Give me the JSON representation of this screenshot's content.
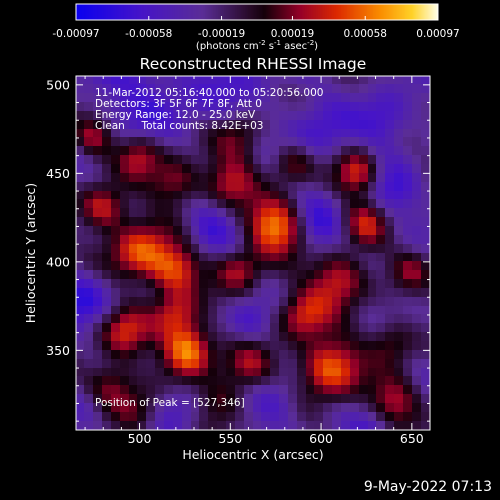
{
  "chart_data": {
    "type": "heatmap",
    "title": "Reconstructed RHESSI Image",
    "xlabel": "Heliocentric X (arcsec)",
    "ylabel": "Heliocentric Y (arcsec)",
    "xlim": [
      465,
      660
    ],
    "ylim": [
      305,
      505
    ],
    "x_ticks": [
      500,
      550,
      600,
      650
    ],
    "y_ticks": [
      350,
      400,
      450,
      500
    ],
    "colorbar": {
      "label": "(photons cm",
      "label_exp1": "-2",
      "label_mid": " s",
      "label_exp2": "-1",
      "label_mid2": " asec",
      "label_exp3": "-2",
      "label_end": ")",
      "range": [
        -0.00097,
        0.00097
      ],
      "ticks": [
        "-0.00097",
        "-0.00058",
        "-0.00019",
        "0.00019",
        "0.00058",
        "0.00097"
      ],
      "tick_values": [
        -0.00097,
        -0.00058,
        -0.00019,
        0.00019,
        0.00058,
        0.00097
      ]
    },
    "peak": [
      527,
      346
    ],
    "blobs": [
      {
        "x": 527,
        "y": 350,
        "v": 1.0,
        "s": 10
      },
      {
        "x": 575,
        "y": 420,
        "v": 0.95,
        "s": 11
      },
      {
        "x": 605,
        "y": 340,
        "v": 0.9,
        "s": 12
      },
      {
        "x": 485,
        "y": 330,
        "v": 0.55,
        "s": 10
      },
      {
        "x": 492,
        "y": 360,
        "v": 0.6,
        "s": 10
      },
      {
        "x": 480,
        "y": 430,
        "v": 0.7,
        "s": 9
      },
      {
        "x": 500,
        "y": 405,
        "v": 0.8,
        "s": 12
      },
      {
        "x": 520,
        "y": 395,
        "v": 0.7,
        "s": 10
      },
      {
        "x": 555,
        "y": 395,
        "v": 0.55,
        "s": 9
      },
      {
        "x": 550,
        "y": 445,
        "v": 0.55,
        "s": 10
      },
      {
        "x": 520,
        "y": 445,
        "v": 0.6,
        "s": 10
      },
      {
        "x": 500,
        "y": 460,
        "v": 0.6,
        "s": 9
      },
      {
        "x": 555,
        "y": 470,
        "v": 0.5,
        "s": 10
      },
      {
        "x": 620,
        "y": 450,
        "v": 0.75,
        "s": 9
      },
      {
        "x": 625,
        "y": 420,
        "v": 0.55,
        "s": 9
      },
      {
        "x": 610,
        "y": 390,
        "v": 0.7,
        "s": 11
      },
      {
        "x": 590,
        "y": 370,
        "v": 0.65,
        "s": 10
      },
      {
        "x": 560,
        "y": 340,
        "v": 0.5,
        "s": 10
      },
      {
        "x": 545,
        "y": 320,
        "v": 0.45,
        "s": 9
      },
      {
        "x": 640,
        "y": 320,
        "v": 0.6,
        "s": 10
      },
      {
        "x": 640,
        "y": 355,
        "v": 0.45,
        "s": 9
      },
      {
        "x": 475,
        "y": 470,
        "v": 0.55,
        "s": 8
      },
      {
        "x": 520,
        "y": 370,
        "v": 0.6,
        "s": 9
      },
      {
        "x": 585,
        "y": 455,
        "v": 0.45,
        "s": 8
      },
      {
        "x": 650,
        "y": 395,
        "v": 0.35,
        "s": 8
      },
      {
        "x": 500,
        "y": 315,
        "v": 0.4,
        "s": 9
      }
    ],
    "troughs": [
      {
        "x": 505,
        "y": 495,
        "v": -0.35,
        "s": 22
      },
      {
        "x": 560,
        "y": 498,
        "v": -0.2,
        "s": 20
      },
      {
        "x": 600,
        "y": 470,
        "v": -0.35,
        "s": 12
      },
      {
        "x": 600,
        "y": 420,
        "v": -0.45,
        "s": 10
      },
      {
        "x": 470,
        "y": 380,
        "v": -0.45,
        "s": 11
      },
      {
        "x": 540,
        "y": 420,
        "v": -0.35,
        "s": 10
      },
      {
        "x": 635,
        "y": 480,
        "v": -0.45,
        "s": 11
      },
      {
        "x": 640,
        "y": 440,
        "v": -0.4,
        "s": 10
      },
      {
        "x": 560,
        "y": 365,
        "v": -0.3,
        "s": 9
      },
      {
        "x": 575,
        "y": 320,
        "v": -0.35,
        "s": 10
      },
      {
        "x": 520,
        "y": 318,
        "v": -0.3,
        "s": 9
      },
      {
        "x": 470,
        "y": 315,
        "v": -0.3,
        "s": 9
      },
      {
        "x": 630,
        "y": 305,
        "v": -0.3,
        "s": 9
      }
    ]
  },
  "info": {
    "time": "11-Mar-2012 05:16:40.000 to 05:20:56.000",
    "detectors": "Detectors: 3F 5F 6F 7F 8F, Att 0",
    "energy": "Energy Range: 12.0 - 25.0 keV",
    "clean": "Clean     Total counts: 8.42E+03",
    "peak_text": "Position of Peak = [527,346]"
  },
  "footer": {
    "timestamp": "9-May-2022 07:13"
  }
}
